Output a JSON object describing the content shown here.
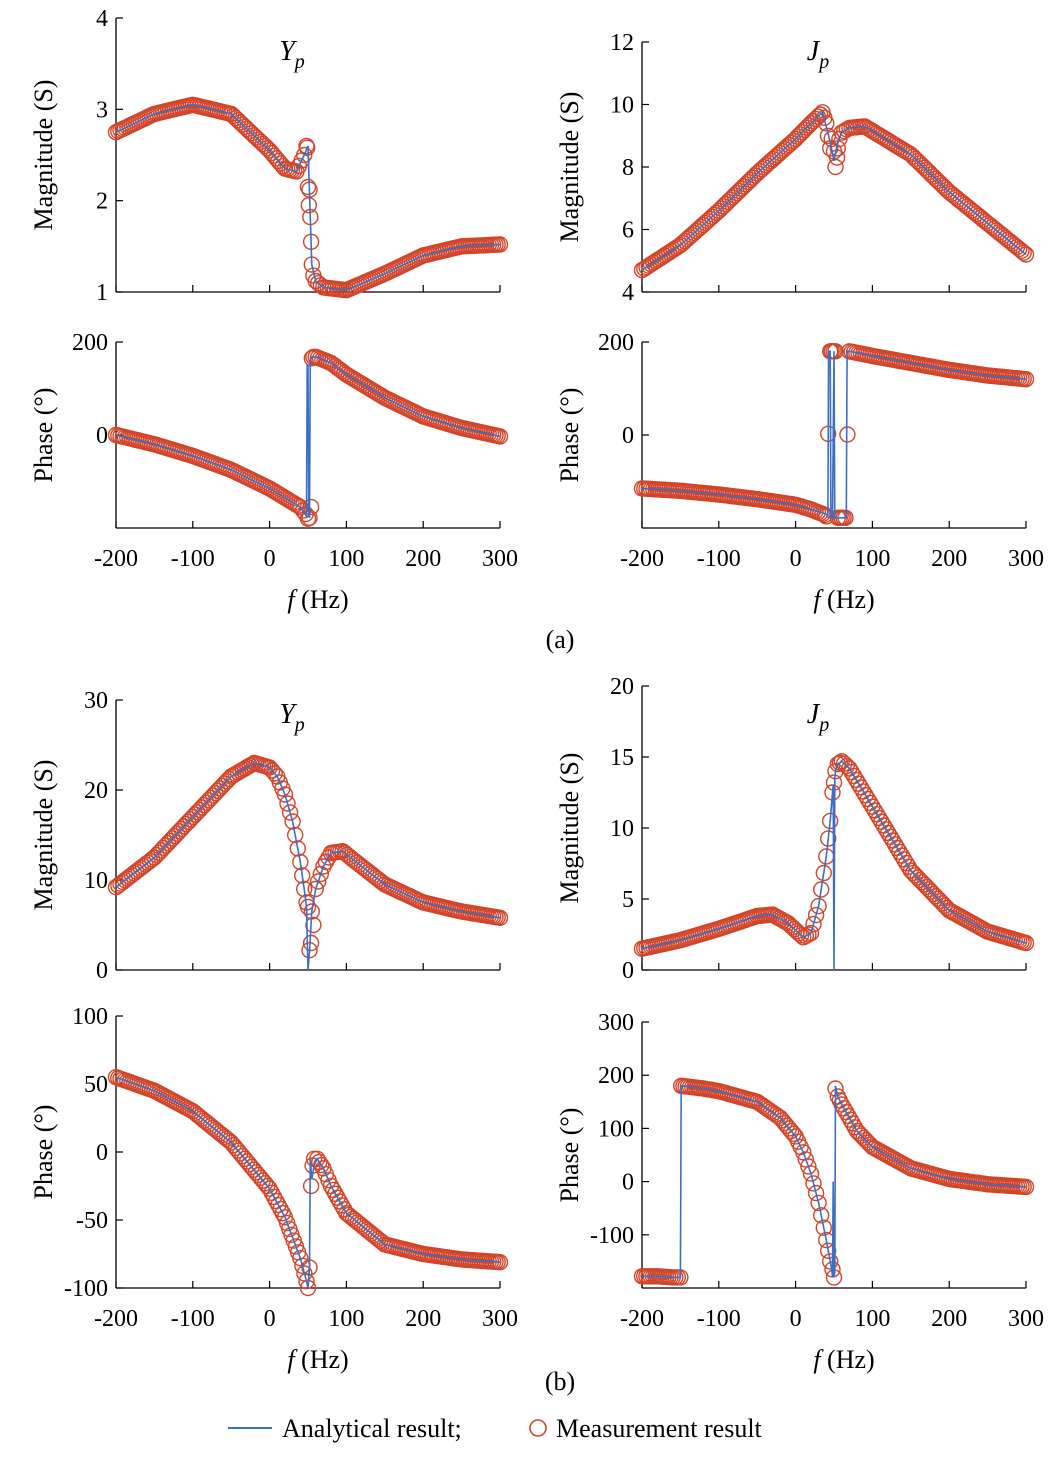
{
  "figure": {
    "captions": [
      "(a)",
      "(b)"
    ],
    "legend": {
      "analytical_label": "Analytical result;",
      "measurement_label": "Measurement result",
      "analytical_color": "#3a6fc4",
      "measurement_color": "#d2452a"
    },
    "x_tick_labels": [
      "-200",
      "-100",
      "0",
      "100",
      "200",
      "300"
    ],
    "xlabel_var": "f",
    "xlabel_unit": " (Hz)"
  },
  "chart_data": [
    {
      "panel": "a-Yp-magnitude",
      "type": "line",
      "title": "Y",
      "title_sub": "p",
      "xlabel": "",
      "ylabel": "Magnitude (S)",
      "xlim": [
        -200,
        300
      ],
      "ylim": [
        1,
        4
      ],
      "yticks": [
        1,
        2,
        3,
        4
      ],
      "ytick_labels": [
        "1",
        "2",
        "3",
        "4"
      ],
      "series": [
        {
          "name": "Analytical result",
          "x": [
            -200,
            -150,
            -100,
            -50,
            0,
            20,
            35,
            45,
            50,
            55,
            60,
            70,
            100,
            150,
            200,
            250,
            300
          ],
          "y": [
            2.75,
            2.95,
            3.05,
            2.95,
            2.55,
            2.35,
            2.32,
            2.5,
            2.6,
            1.3,
            1.12,
            1.05,
            1.02,
            1.2,
            1.4,
            1.5,
            1.52
          ]
        },
        {
          "name": "Measurement result",
          "x": [
            -200,
            -150,
            -100,
            -50,
            0,
            20,
            35,
            45,
            48,
            49,
            50,
            51,
            52,
            53,
            54,
            55,
            57,
            60,
            70,
            100,
            150,
            200,
            250,
            300
          ],
          "y": [
            2.75,
            2.95,
            3.05,
            2.95,
            2.55,
            2.35,
            2.32,
            2.5,
            2.6,
            2.58,
            2.15,
            1.95,
            2.12,
            1.82,
            1.55,
            1.3,
            1.18,
            1.12,
            1.05,
            1.02,
            1.2,
            1.4,
            1.5,
            1.52
          ]
        }
      ]
    },
    {
      "panel": "a-Jp-magnitude",
      "type": "line",
      "title": "J",
      "title_sub": "p",
      "xlabel": "",
      "ylabel": "Magnitude (S)",
      "xlim": [
        -200,
        300
      ],
      "ylim": [
        4,
        12
      ],
      "yticks": [
        4,
        6,
        8,
        10,
        12
      ],
      "ytick_labels": [
        "4",
        "6",
        "8",
        "10",
        "12"
      ],
      "series": [
        {
          "name": "Analytical result",
          "x": [
            -200,
            -150,
            -100,
            -50,
            0,
            20,
            35,
            45,
            50,
            55,
            60,
            70,
            90,
            150,
            200,
            250,
            300
          ],
          "y": [
            4.7,
            5.5,
            6.6,
            7.8,
            8.9,
            9.4,
            9.75,
            8.8,
            8.2,
            8.8,
            9.1,
            9.25,
            9.3,
            8.4,
            7.2,
            6.2,
            5.2
          ]
        },
        {
          "name": "Measurement result",
          "x": [
            -200,
            -150,
            -100,
            -50,
            0,
            20,
            35,
            40,
            42,
            45,
            47,
            50,
            52,
            54,
            55,
            57,
            60,
            70,
            90,
            150,
            200,
            250,
            300
          ],
          "y": [
            4.7,
            5.5,
            6.6,
            7.8,
            8.9,
            9.4,
            9.75,
            9.4,
            9.0,
            8.6,
            8.9,
            8.5,
            8.0,
            8.3,
            8.6,
            8.9,
            9.1,
            9.25,
            9.3,
            8.4,
            7.2,
            6.2,
            5.2
          ]
        }
      ]
    },
    {
      "panel": "a-Yp-phase",
      "type": "line",
      "title": "",
      "xlabel": "f (Hz)",
      "ylabel": "Phase (°)",
      "xlim": [
        -200,
        300
      ],
      "ylim": [
        -200,
        200
      ],
      "yticks": [
        0,
        200
      ],
      "ytick_labels": [
        "0",
        "200"
      ],
      "series": [
        {
          "name": "Analytical result",
          "x": [
            -200,
            -150,
            -100,
            -50,
            0,
            20,
            40,
            48,
            49,
            50,
            51,
            52,
            53,
            55,
            60,
            80,
            100,
            150,
            200,
            250,
            300
          ],
          "y": [
            0,
            -20,
            -45,
            -75,
            -115,
            -135,
            -155,
            -175,
            150,
            150,
            -175,
            -178,
            160,
            168,
            168,
            155,
            130,
            80,
            40,
            15,
            -3
          ]
        },
        {
          "name": "Measurement result",
          "x": [
            -200,
            -150,
            -100,
            -50,
            0,
            20,
            40,
            47,
            50,
            52,
            54,
            55,
            57,
            60,
            80,
            100,
            150,
            200,
            250,
            300
          ],
          "y": [
            0,
            -20,
            -45,
            -75,
            -115,
            -135,
            -155,
            -170,
            -180,
            -178,
            -155,
            165,
            168,
            168,
            155,
            130,
            80,
            40,
            15,
            -3
          ]
        }
      ]
    },
    {
      "panel": "a-Jp-phase",
      "type": "line",
      "title": "",
      "xlabel": "f (Hz)",
      "ylabel": "Phase (°)",
      "xlim": [
        -200,
        300
      ],
      "ylim": [
        -200,
        200
      ],
      "yticks": [
        0,
        200
      ],
      "ytick_labels": [
        "0",
        "200"
      ],
      "series": [
        {
          "name": "Analytical result",
          "x": [
            -200,
            -150,
            -100,
            -50,
            0,
            20,
            40,
            42,
            43,
            45,
            46,
            48,
            50,
            51,
            55,
            60,
            66,
            67,
            70,
            100,
            150,
            200,
            250,
            300
          ],
          "y": [
            -115,
            -120,
            -128,
            -138,
            -150,
            -160,
            -170,
            -175,
            180,
            180,
            -175,
            -178,
            180,
            -178,
            -178,
            -178,
            -178,
            180,
            180,
            170,
            155,
            140,
            128,
            120
          ]
        },
        {
          "name": "Measurement result",
          "x": [
            -200,
            -150,
            -100,
            -50,
            0,
            20,
            38,
            40,
            45,
            47,
            52,
            55,
            60,
            65,
            70,
            100,
            150,
            200,
            250,
            300
          ],
          "y": [
            -115,
            -120,
            -128,
            -138,
            -150,
            -160,
            -172,
            -175,
            180,
            180,
            180,
            -178,
            -178,
            -178,
            180,
            170,
            155,
            140,
            128,
            120
          ]
        }
      ]
    },
    {
      "panel": "b-Yp-magnitude",
      "type": "line",
      "title": "Y",
      "title_sub": "p",
      "xlabel": "",
      "ylabel": "Magnitude (S)",
      "xlim": [
        -200,
        300
      ],
      "ylim": [
        0,
        30
      ],
      "yticks": [
        0,
        10,
        20,
        30
      ],
      "ytick_labels": [
        "0",
        "10",
        "20",
        "30"
      ],
      "series": [
        {
          "name": "Analytical result",
          "x": [
            -200,
            -150,
            -100,
            -50,
            -20,
            0,
            10,
            20,
            30,
            40,
            45,
            48,
            50,
            52,
            55,
            60,
            70,
            80,
            95,
            120,
            150,
            200,
            250,
            300
          ],
          "y": [
            9.2,
            12.5,
            17,
            21.5,
            23,
            22.5,
            21.5,
            19.5,
            16.5,
            12,
            9,
            7,
            0,
            2,
            6.5,
            9,
            11.5,
            13,
            13.2,
            11.5,
            9.5,
            7.5,
            6.5,
            5.8
          ]
        },
        {
          "name": "Measurement result",
          "x": [
            -200,
            -150,
            -100,
            -50,
            -20,
            0,
            10,
            20,
            30,
            40,
            45,
            48,
            50,
            52,
            54,
            55,
            57,
            60,
            70,
            80,
            95,
            120,
            150,
            200,
            250,
            300
          ],
          "y": [
            9.2,
            12.5,
            17,
            21.5,
            23,
            22.5,
            21.5,
            19.5,
            16.5,
            12,
            9,
            7.5,
            7,
            2.2,
            3,
            6.5,
            5,
            9,
            11.5,
            13,
            13.2,
            11.5,
            9.5,
            7.5,
            6.5,
            5.8
          ]
        }
      ]
    },
    {
      "panel": "b-Jp-magnitude",
      "type": "line",
      "title": "J",
      "title_sub": "p",
      "xlabel": "",
      "ylabel": "Magnitude (S)",
      "xlim": [
        -200,
        300
      ],
      "ylim": [
        0,
        20
      ],
      "yticks": [
        0,
        5,
        10,
        15,
        20
      ],
      "ytick_labels": [
        "0",
        "5",
        "10",
        "15",
        "20"
      ],
      "series": [
        {
          "name": "Analytical result",
          "x": [
            -200,
            -150,
            -100,
            -50,
            -30,
            -10,
            10,
            20,
            30,
            40,
            45,
            48,
            49,
            50,
            51,
            52,
            55,
            60,
            70,
            100,
            150,
            200,
            250,
            300
          ],
          "y": [
            1.5,
            2.1,
            2.9,
            3.8,
            3.9,
            3.3,
            2.3,
            2.6,
            4.5,
            8.0,
            10.5,
            12.5,
            13,
            0,
            13.5,
            14,
            14.5,
            14.7,
            14.2,
            11.5,
            7.0,
            4.2,
            2.7,
            1.9
          ]
        },
        {
          "name": "Measurement result",
          "x": [
            -200,
            -150,
            -100,
            -50,
            -30,
            -10,
            10,
            20,
            30,
            40,
            45,
            48,
            50,
            52,
            55,
            60,
            70,
            100,
            150,
            200,
            250,
            300
          ],
          "y": [
            1.5,
            2.1,
            2.9,
            3.8,
            3.9,
            3.3,
            2.3,
            2.6,
            4.5,
            8.0,
            10.5,
            12.5,
            13.2,
            14,
            14.5,
            14.7,
            14.2,
            11.5,
            7.0,
            4.2,
            2.7,
            1.9
          ]
        }
      ]
    },
    {
      "panel": "b-Yp-phase",
      "type": "line",
      "title": "",
      "xlabel": "f (Hz)",
      "ylabel": "Phase (°)",
      "xlim": [
        -200,
        300
      ],
      "ylim": [
        -100,
        100
      ],
      "yticks": [
        -100,
        -50,
        0,
        50,
        100
      ],
      "ytick_labels": [
        "-100",
        "-50",
        "0",
        "50",
        "100"
      ],
      "series": [
        {
          "name": "Analytical result",
          "x": [
            -200,
            -150,
            -100,
            -50,
            0,
            20,
            40,
            48,
            50,
            52,
            53,
            55,
            58,
            62,
            70,
            80,
            100,
            150,
            200,
            250,
            300
          ],
          "y": [
            55,
            45,
            30,
            7,
            -27,
            -48,
            -78,
            -95,
            -100,
            -85,
            -5,
            -20,
            -10,
            -5,
            -12,
            -25,
            -45,
            -68,
            -75,
            -79,
            -81
          ]
        },
        {
          "name": "Measurement result",
          "x": [
            -200,
            -150,
            -100,
            -50,
            0,
            20,
            40,
            48,
            50,
            52,
            54,
            56,
            58,
            62,
            70,
            80,
            100,
            150,
            200,
            250,
            300
          ],
          "y": [
            55,
            45,
            30,
            7,
            -27,
            -48,
            -78,
            -95,
            -100,
            -85,
            -25,
            -10,
            -5,
            -5,
            -12,
            -25,
            -45,
            -68,
            -75,
            -79,
            -81
          ]
        }
      ]
    },
    {
      "panel": "b-Jp-phase",
      "type": "line",
      "title": "",
      "xlabel": "f (Hz)",
      "ylabel": "Phase (°)",
      "xlim": [
        -200,
        300
      ],
      "ylim": [
        -200,
        300
      ],
      "yticks": [
        -100,
        0,
        100,
        200,
        300
      ],
      "ytick_labels": [
        "-100",
        "0",
        "100",
        "200",
        "300"
      ],
      "series": [
        {
          "name": "Analytical result",
          "x": [
            -200,
            -180,
            -160,
            -150,
            -149,
            -120,
            -100,
            -50,
            -20,
            0,
            10,
            20,
            30,
            40,
            45,
            47,
            48,
            49,
            50,
            51,
            52,
            55,
            60,
            80,
            100,
            150,
            200,
            250,
            300
          ],
          "y": [
            -178,
            -178,
            -180,
            -180,
            180,
            175,
            170,
            150,
            120,
            85,
            55,
            15,
            -40,
            -110,
            -150,
            -165,
            -180,
            0,
            -180,
            -170,
            180,
            160,
            145,
            95,
            65,
            25,
            5,
            -5,
            -10
          ]
        },
        {
          "name": "Measurement result",
          "x": [
            -200,
            -180,
            -160,
            -150,
            -149,
            -120,
            -100,
            -50,
            -20,
            0,
            10,
            20,
            30,
            40,
            45,
            48,
            50,
            52,
            55,
            60,
            80,
            100,
            150,
            200,
            250,
            300
          ],
          "y": [
            -178,
            -178,
            -180,
            -180,
            180,
            175,
            170,
            150,
            120,
            85,
            55,
            15,
            -40,
            -110,
            -150,
            -165,
            -180,
            175,
            160,
            145,
            95,
            65,
            25,
            5,
            -5,
            -10
          ]
        }
      ]
    }
  ]
}
